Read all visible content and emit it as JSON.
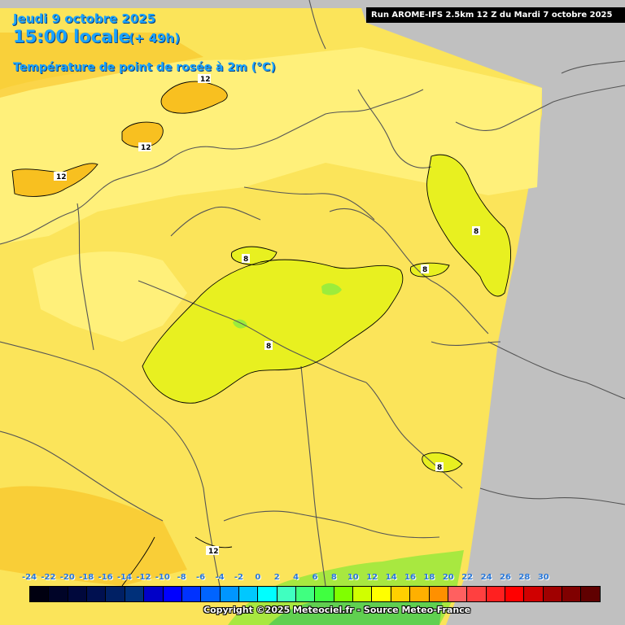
{
  "header": {
    "date": "Jeudi 9 octobre 2025",
    "time": "15:00 locale",
    "lead_time": "(+ 49h)",
    "parameter": "Température de point de rosée à 2m (°C)"
  },
  "run_info": "Run AROME-IFS 2.5km 12 Z du Mardi 7 octobre 2025",
  "map": {
    "background_color": "#c0c0c0",
    "contour_labels": [
      "12",
      "12",
      "12",
      "8",
      "8",
      "8",
      "8",
      "8",
      "12"
    ]
  },
  "legend": {
    "ticks": [
      "-24",
      "-22",
      "-20",
      "-18",
      "-16",
      "-14",
      "-12",
      "-10",
      "-8",
      "-6",
      "-4",
      "-2",
      "0",
      "2",
      "4",
      "6",
      "8",
      "10",
      "12",
      "14",
      "16",
      "18",
      "20",
      "22",
      "24",
      "26",
      "28",
      "30"
    ],
    "colors": [
      "#000010",
      "#000428",
      "#00083c",
      "#001050",
      "#002064",
      "#00307a",
      "#0000c8",
      "#0000ff",
      "#0032ff",
      "#0064ff",
      "#0096ff",
      "#00c8ff",
      "#00ffff",
      "#40ffc0",
      "#40ff80",
      "#40ff40",
      "#80ff00",
      "#d0ff00",
      "#ffff00",
      "#ffd000",
      "#ffb000",
      "#ff9000",
      "#ff6060",
      "#ff4040",
      "#ff2020",
      "#ff0000",
      "#d00000",
      "#a00000",
      "#800000",
      "#600000"
    ]
  },
  "copyright": "Copyright ©2025 Meteociel.fr - Source Meteo-France"
}
